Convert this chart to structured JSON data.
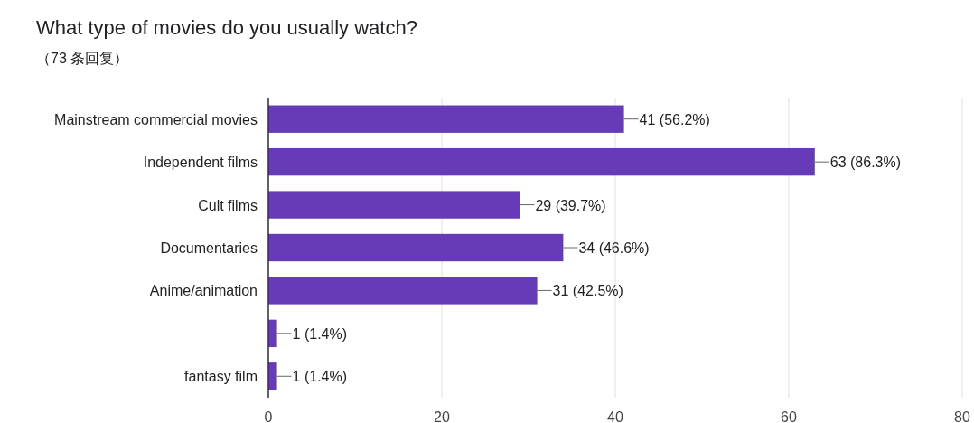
{
  "chart_data": {
    "type": "bar",
    "orientation": "horizontal",
    "title": "What type of movies do you usually watch?",
    "subtitle": "（73 条回复）",
    "categories": [
      "Mainstream commercial movies",
      "Independent films",
      "Cult films",
      "Documentaries",
      "Anime/animation",
      null,
      "fantasy film"
    ],
    "values": [
      41,
      63,
      29,
      34,
      31,
      1,
      1
    ],
    "value_labels": [
      "41 (56.2%)",
      "63 (86.3%)",
      "29 (39.7%)",
      "34 (46.6%)",
      "31 (42.5%)",
      "1 (1.4%)",
      "1 (1.4%)"
    ],
    "color": "#673ab7",
    "xlim": [
      0,
      80
    ],
    "xticks": [
      0,
      20,
      40,
      60,
      80
    ],
    "grid": "x"
  }
}
